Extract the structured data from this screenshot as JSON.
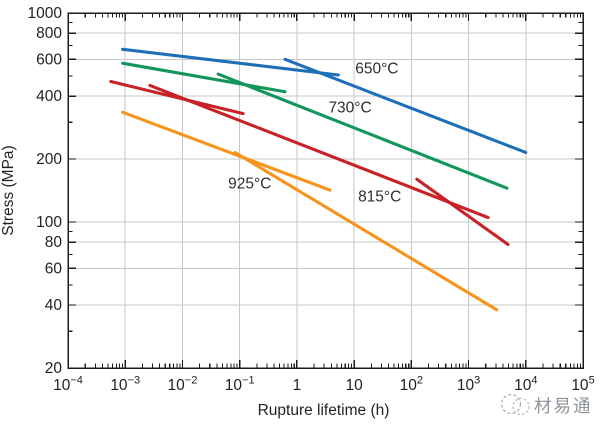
{
  "chart_data": {
    "type": "line",
    "title": "",
    "xlabel": "Rupture lifetime (h)",
    "ylabel": "Stress (MPa)",
    "x_scale": "log",
    "y_scale": "log",
    "xlim": [
      0.0001,
      100000
    ],
    "ylim": [
      20,
      1000
    ],
    "grid": true,
    "legend_position": "inline-labels",
    "x_ticks": [
      {
        "v": 0.0001,
        "label": "10^-4"
      },
      {
        "v": 0.001,
        "label": "10^-3"
      },
      {
        "v": 0.01,
        "label": "10^-2"
      },
      {
        "v": 0.1,
        "label": "10^-1"
      },
      {
        "v": 1,
        "label": "1"
      },
      {
        "v": 10,
        "label": "10"
      },
      {
        "v": 100,
        "label": "10^2"
      },
      {
        "v": 1000,
        "label": "10^3"
      },
      {
        "v": 10000,
        "label": "10^4"
      },
      {
        "v": 100000,
        "label": "10^5"
      }
    ],
    "y_ticks": [
      {
        "v": 1000,
        "label": "1000"
      },
      {
        "v": 800,
        "label": "800"
      },
      {
        "v": 600,
        "label": "600"
      },
      {
        "v": 400,
        "label": "400"
      },
      {
        "v": 200,
        "label": "200"
      },
      {
        "v": 100,
        "label": "100"
      },
      {
        "v": 80,
        "label": "80"
      },
      {
        "v": 60,
        "label": "60"
      },
      {
        "v": 40,
        "label": "40"
      },
      {
        "v": 20,
        "label": "20"
      }
    ],
    "y_minor_ticks": [
      900,
      700,
      500,
      300,
      90,
      70,
      50,
      30
    ],
    "x_gridlines": [
      0.001,
      0.01,
      0.1,
      1,
      10,
      100,
      1000,
      10000
    ],
    "y_gridlines": [
      800,
      600,
      400,
      200,
      100,
      80,
      60,
      40
    ],
    "series": [
      {
        "name": "650°C",
        "color": "#1e6fb8",
        "label_pos": [
          25,
          545
        ],
        "segments": [
          [
            [
              0.0009,
              670
            ],
            [
              5.3,
              505
            ]
          ],
          [
            [
              0.62,
              600
            ],
            [
              10000,
              215
            ]
          ]
        ]
      },
      {
        "name": "730°C",
        "color": "#13965c",
        "label_pos": [
          8.5,
          355
        ],
        "segments": [
          [
            [
              0.0009,
              575
            ],
            [
              0.62,
              420
            ]
          ],
          [
            [
              0.042,
              510
            ],
            [
              4700,
              145
            ]
          ]
        ]
      },
      {
        "name": "815°C",
        "color": "#c82227",
        "label_pos": [
          28,
          133
        ],
        "segments": [
          [
            [
              0.00056,
              470
            ],
            [
              0.115,
              330
            ]
          ],
          [
            [
              0.0027,
              450
            ],
            [
              2200,
              105
            ]
          ],
          [
            [
              125,
              160
            ],
            [
              4900,
              78
            ]
          ]
        ]
      },
      {
        "name": "925°C",
        "color": "#f7941e",
        "label_pos": [
          0.15,
          154
        ],
        "segments": [
          [
            [
              0.0009,
              335
            ],
            [
              3.8,
              142
            ]
          ],
          [
            [
              0.083,
              215
            ],
            [
              3100,
              38
            ]
          ]
        ]
      }
    ],
    "colors": {
      "axis": "#1b1b1b",
      "grid": "#c5c8ca",
      "tick_text": "#231f20",
      "curve_label_text": "#2f2f2f",
      "watermark": "#8e949a"
    }
  },
  "watermark": {
    "text": "材易通",
    "icon": "double-circle-logo-icon"
  }
}
